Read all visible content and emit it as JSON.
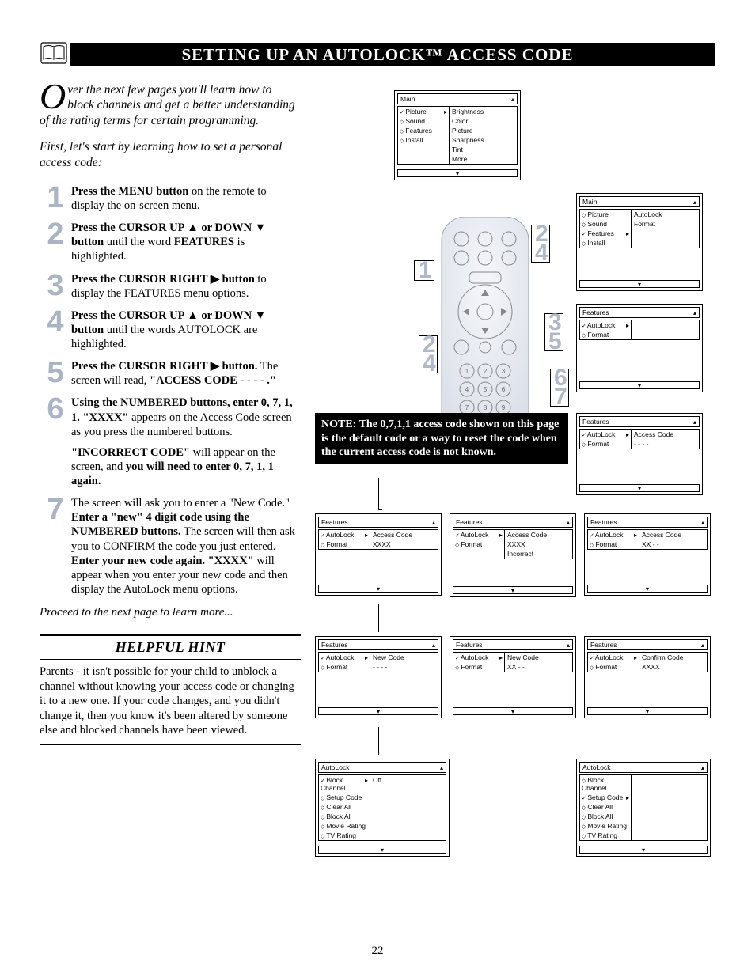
{
  "title": "SETTING UP AN AUTOLOCK™ ACCESS CODE",
  "intro_dropcap": "O",
  "intro_rest": "ver the next few pages you'll learn how to block channels and get a better understanding of the rating terms for certain programming.",
  "intro2": "First, let's start by learning how to set a personal access code:",
  "steps": [
    {
      "n": "1",
      "html": "<b>Press the MENU button</b> on the remote to display the on-screen menu."
    },
    {
      "n": "2",
      "html": "<b>Press the CURSOR UP ▲ or DOWN ▼ button</b> until the word <b>FEATURES</b> is highlighted."
    },
    {
      "n": "3",
      "html": "<b>Press the CURSOR RIGHT ▶ button</b> to display the FEATURES menu options."
    },
    {
      "n": "4",
      "html": "<b>Press the CURSOR UP ▲ or DOWN ▼ button</b> until the words AUTOLOCK are highlighted."
    },
    {
      "n": "5",
      "html": "<b>Press the CURSOR RIGHT ▶ button.</b> The screen will read, <b>\"ACCESS CODE - - - - .\"</b>"
    },
    {
      "n": "6",
      "html": "<b>Using the NUMBERED buttons, enter 0, 7, 1, 1. \"XXXX\"</b> appears on the Access Code screen as you press the numbered buttons.",
      "cont": "<b>\"INCORRECT CODE\"</b> will appear on the screen, and <b>you will need to enter 0, 7, 1, 1 again.</b>"
    },
    {
      "n": "7",
      "html": "The screen will ask you to enter a \"New Code.\" <b>Enter a \"new\" 4 digit code using the NUMBERED buttons.</b> The screen will then ask you to CONFIRM the code you just entered. <b>Enter your new code again. \"XXXX\"</b> will appear when you enter your new code and then display the AutoLock menu options."
    }
  ],
  "closing": "Proceed to the next page to learn more...",
  "hint_title": "HELPFUL HINT",
  "hint_body": "Parents - it isn't possible for your child to unblock a channel without knowing your access code or changing it to a new one. If your code changes, and you didn't change it, then you know it's been altered by someone else and blocked channels have been viewed.",
  "page_number": "22",
  "note_text": "NOTE: The 0,7,1,1 access code shown on this page is the default code or a way to reset the code when the current access code is not known.",
  "callouts": {
    "c1": "1",
    "c2a": "2",
    "c2b": "2",
    "c3": "3",
    "c4a": "4",
    "c4b": "4",
    "c5": "5",
    "c6": "6",
    "c7": "7"
  },
  "menus": {
    "main1": {
      "title": "Main",
      "left": [
        {
          "b": "chk",
          "t": "Picture",
          "sel": true,
          "r": "▸"
        },
        {
          "b": "dia",
          "t": "Sound"
        },
        {
          "b": "dia",
          "t": "Features"
        },
        {
          "b": "dia",
          "t": "Install"
        }
      ],
      "right": [
        "Brightness",
        "Color",
        "Picture",
        "Sharpness",
        "Tint",
        "More..."
      ]
    },
    "main2": {
      "title": "Main",
      "left": [
        {
          "b": "dia",
          "t": "Picture"
        },
        {
          "b": "dia",
          "t": "Sound"
        },
        {
          "b": "chk",
          "t": "Features",
          "sel": true,
          "r": "▸"
        },
        {
          "b": "dia",
          "t": "Install"
        }
      ],
      "right": [
        "AutoLock",
        "Format"
      ]
    },
    "feat1": {
      "title": "Features",
      "left": [
        {
          "b": "chk",
          "t": "AutoLock",
          "sel": true,
          "r": "▸"
        },
        {
          "b": "dia",
          "t": "Format"
        }
      ],
      "right": []
    },
    "feat_code_dash": {
      "title": "Features",
      "left": [
        {
          "b": "chk",
          "t": "AutoLock",
          "sel": true,
          "r": "▸"
        },
        {
          "b": "dia",
          "t": "Format"
        }
      ],
      "right": [
        "Access Code",
        "- - - -"
      ]
    },
    "feat_code_xxxx": {
      "title": "Features",
      "left": [
        {
          "b": "chk",
          "t": "AutoLock",
          "sel": true,
          "r": "▸"
        },
        {
          "b": "dia",
          "t": "Format"
        }
      ],
      "right": [
        "Access Code",
        "XXXX"
      ]
    },
    "feat_code_incorrect": {
      "title": "Features",
      "left": [
        {
          "b": "chk",
          "t": "AutoLock",
          "sel": true,
          "r": "▸"
        },
        {
          "b": "dia",
          "t": "Format"
        }
      ],
      "right": [
        "Access Code",
        "XXXX",
        "Incorrect"
      ]
    },
    "feat_code_xx": {
      "title": "Features",
      "left": [
        {
          "b": "chk",
          "t": "AutoLock",
          "sel": true,
          "r": "▸"
        },
        {
          "b": "dia",
          "t": "Format"
        }
      ],
      "right": [
        "Access Code",
        "XX - -"
      ]
    },
    "feat_new_dash": {
      "title": "Features",
      "left": [
        {
          "b": "chk",
          "t": "AutoLock",
          "sel": true,
          "r": "▸"
        },
        {
          "b": "dia",
          "t": "Format"
        }
      ],
      "right": [
        "New Code",
        "- - - -"
      ]
    },
    "feat_new_xx": {
      "title": "Features",
      "left": [
        {
          "b": "chk",
          "t": "AutoLock",
          "sel": true,
          "r": "▸"
        },
        {
          "b": "dia",
          "t": "Format"
        }
      ],
      "right": [
        "New Code",
        "XX - -"
      ]
    },
    "feat_confirm": {
      "title": "Features",
      "left": [
        {
          "b": "chk",
          "t": "AutoLock",
          "sel": true,
          "r": "▸"
        },
        {
          "b": "dia",
          "t": "Format"
        }
      ],
      "right": [
        "Confirm Code",
        "XXXX"
      ]
    },
    "autolock1": {
      "title": "AutoLock",
      "left": [
        {
          "b": "chk",
          "t": "Block Channel",
          "sel": true,
          "r": "▸"
        },
        {
          "b": "dia",
          "t": "Setup Code"
        },
        {
          "b": "dia",
          "t": "Clear All"
        },
        {
          "b": "dia",
          "t": "Block All"
        },
        {
          "b": "dia",
          "t": "Movie Rating"
        },
        {
          "b": "dia",
          "t": "TV Rating"
        }
      ],
      "right": [
        "Off"
      ]
    },
    "autolock2": {
      "title": "AutoLock",
      "left": [
        {
          "b": "dia",
          "t": "Block Channel"
        },
        {
          "b": "chk",
          "t": "Setup Code",
          "sel": true,
          "r": "▸"
        },
        {
          "b": "dia",
          "t": "Clear All"
        },
        {
          "b": "dia",
          "t": "Block All"
        },
        {
          "b": "dia",
          "t": "Movie Rating"
        },
        {
          "b": "dia",
          "t": "TV Rating"
        }
      ],
      "right": []
    }
  },
  "colors": {
    "step_num": "#aab4c5",
    "title_bg": "#000000",
    "title_fg": "#ffffff",
    "text": "#000000",
    "bg": "#ffffff"
  }
}
